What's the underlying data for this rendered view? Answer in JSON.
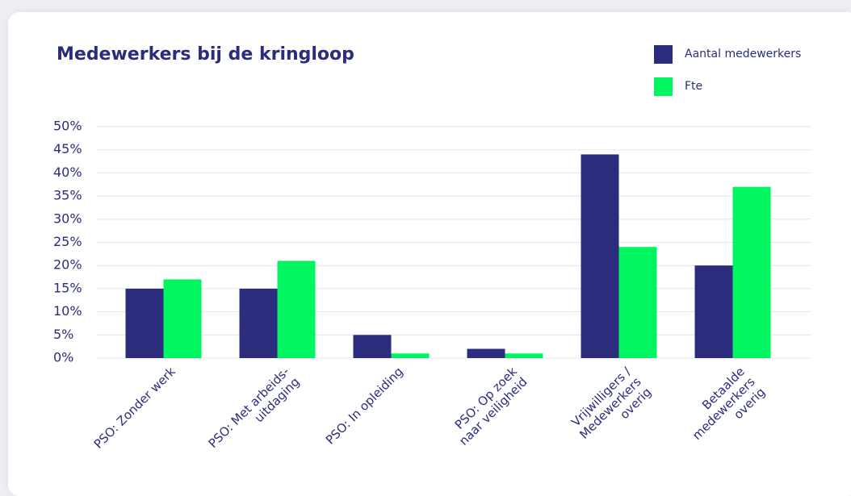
{
  "chart_data": {
    "type": "bar",
    "title": "Medewerkers bij de kringloop",
    "categories": [
      [
        "PSO: Zonder werk"
      ],
      [
        "PSO: Met arbeids-",
        "uitdaging"
      ],
      [
        "PSO: In opleiding"
      ],
      [
        "PSO: Op zoek",
        "naar veiligheid"
      ],
      [
        "Vrijwilligers /",
        "Medewerkers",
        "overig"
      ],
      [
        "Betaalde",
        "medewerkers",
        "overig"
      ]
    ],
    "series": [
      {
        "name": "Aantal medewerkers",
        "color": "#2b2d7c",
        "values": [
          15,
          15,
          5,
          2,
          44,
          20
        ]
      },
      {
        "name": "Fte",
        "color": "#00f560",
        "values": [
          17,
          21,
          1,
          1,
          24,
          37
        ]
      }
    ],
    "ylim": [
      0,
      50
    ],
    "yticks": [
      {
        "value": 0,
        "label": "0%"
      },
      {
        "value": 5,
        "label": "5%"
      },
      {
        "value": 10,
        "label": "10%"
      },
      {
        "value": 15,
        "label": "15%"
      },
      {
        "value": 20,
        "label": "20%"
      },
      {
        "value": 25,
        "label": "25%"
      },
      {
        "value": 30,
        "label": "30%"
      },
      {
        "value": 35,
        "label": "35%"
      },
      {
        "value": 40,
        "label": "40%"
      },
      {
        "value": 45,
        "label": "45%"
      },
      {
        "value": 50,
        "label": "50%"
      }
    ],
    "grid": true,
    "legend": "top-right"
  }
}
